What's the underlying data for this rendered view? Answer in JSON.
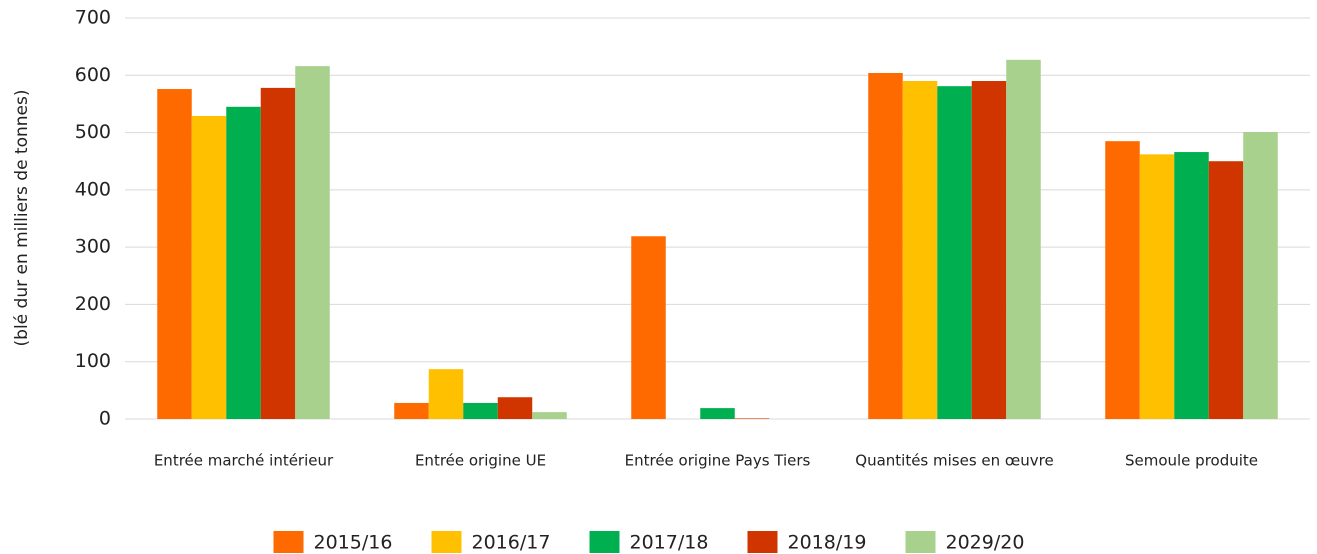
{
  "chart_data": {
    "type": "bar",
    "y_label": "(blé dur en milliers de tonnes)",
    "categories": [
      "Entrée marché intérieur",
      "Entrée origine UE",
      "Entrée origine Pays Tiers",
      "Quantités mises en œuvre",
      "Semoule produite"
    ],
    "series": [
      {
        "name": "2015/16",
        "color": "#ff6a00",
        "values": [
          576,
          28,
          319,
          604,
          485
        ]
      },
      {
        "name": "2016/17",
        "color": "#ffc000",
        "values": [
          529,
          87,
          0,
          590,
          462
        ]
      },
      {
        "name": "2017/18",
        "color": "#00b050",
        "values": [
          545,
          28,
          19,
          581,
          466
        ]
      },
      {
        "name": "2018/19",
        "color": "#d03500",
        "values": [
          578,
          38,
          1,
          590,
          450
        ]
      },
      {
        "name": "2029/20",
        "color": "#a9d18e",
        "values": [
          616,
          12,
          0,
          627,
          501
        ]
      }
    ],
    "ylim": [
      0,
      700
    ],
    "yticks": [
      0,
      100,
      200,
      300,
      400,
      500,
      600,
      700
    ],
    "grid": true
  }
}
